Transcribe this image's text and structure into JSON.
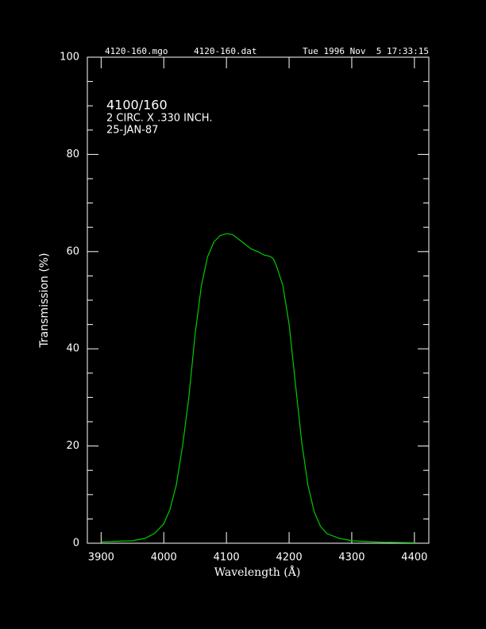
{
  "chart_data": {
    "type": "line",
    "header": [
      "4120-160.mgo",
      "4120-160.dat",
      "Tue 1996 Nov  5 17:33:15"
    ],
    "annotations": [
      "4100/160",
      "2 CIRC. X .330 INCH.",
      "25-JAN-87"
    ],
    "xlabel": "Wavelength (Å)",
    "ylabel": "Transmission (%)",
    "xlim": [
      3878,
      4423
    ],
    "ylim": [
      0,
      100
    ],
    "xticks": [
      3900,
      4000,
      4100,
      4200,
      4300,
      4400
    ],
    "yticks": [
      0,
      20,
      40,
      60,
      80,
      100
    ],
    "yminorticks": [
      5,
      10,
      15,
      25,
      30,
      35,
      45,
      50,
      55,
      65,
      70,
      75,
      85,
      90,
      95
    ],
    "x": [
      3900,
      3950,
      3970,
      3985,
      4000,
      4010,
      4020,
      4030,
      4040,
      4050,
      4060,
      4070,
      4080,
      4090,
      4100,
      4110,
      4120,
      4130,
      4140,
      4150,
      4160,
      4170,
      4175,
      4180,
      4190,
      4200,
      4210,
      4220,
      4230,
      4240,
      4250,
      4260,
      4280,
      4300,
      4350,
      4400
    ],
    "series": [
      {
        "color": "#00cc00",
        "values": [
          0.3,
          0.5,
          1,
          2,
          4,
          7,
          12,
          20,
          30,
          43,
          53,
          59,
          62,
          63.3,
          63.7,
          63.5,
          62.5,
          61.5,
          60.5,
          60,
          59.3,
          59,
          58.5,
          57,
          53,
          45,
          33,
          21,
          12,
          6.5,
          3.5,
          2,
          1,
          0.5,
          0.2,
          0.1
        ]
      }
    ]
  }
}
